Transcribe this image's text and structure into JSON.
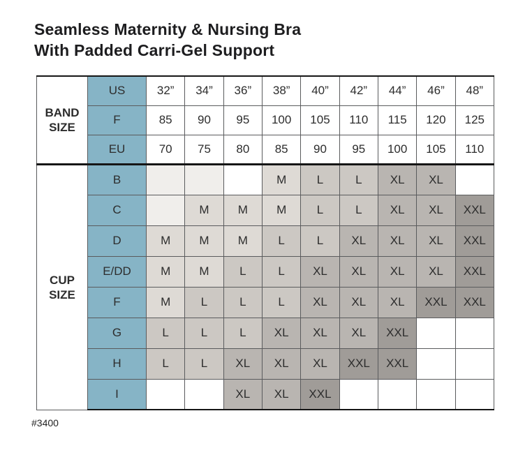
{
  "header": {
    "title_line1": "Seamless Maternity & Nursing Bra",
    "title_line2": "With Padded Carri-Gel Support"
  },
  "footer": {
    "item_number": "#3400"
  },
  "colors": {
    "teal": "#86b4c6",
    "teal_text": "#1c2a38",
    "body_text": "#2d2d2d",
    "grid_line": "#5a5b5d",
    "heavy_line": "#161616",
    "shades": {
      "w": "#ffffff",
      "e": "#f0eeeb",
      "m": "#dedad5",
      "l": "#ccc8c3",
      "xl": "#b9b5b1",
      "xxl": "#a09c98"
    }
  },
  "chart_data": {
    "type": "table",
    "title": "Seamless Maternity & Nursing Bra With Padded Carri-Gel Support",
    "band_section": {
      "label_line1": "BAND",
      "label_line2": "SIZE",
      "rows": [
        {
          "header": "US",
          "values": [
            "32”",
            "34”",
            "36”",
            "38”",
            "40”",
            "42”",
            "44”",
            "46”",
            "48”"
          ]
        },
        {
          "header": "F",
          "values": [
            "85",
            "90",
            "95",
            "100",
            "105",
            "110",
            "115",
            "120",
            "125"
          ]
        },
        {
          "header": "EU",
          "values": [
            "70",
            "75",
            "80",
            "85",
            "90",
            "95",
            "100",
            "105",
            "110"
          ]
        }
      ]
    },
    "cup_section": {
      "label_line1": "CUP",
      "label_line2": "SIZE",
      "rows": [
        {
          "header": "B",
          "cells": [
            {
              "t": "",
              "s": "e"
            },
            {
              "t": "",
              "s": "e"
            },
            {
              "t": "",
              "s": "w"
            },
            {
              "t": "M",
              "s": "m"
            },
            {
              "t": "L",
              "s": "l"
            },
            {
              "t": "L",
              "s": "l"
            },
            {
              "t": "XL",
              "s": "xl"
            },
            {
              "t": "XL",
              "s": "xl"
            },
            {
              "t": "",
              "s": "w"
            }
          ]
        },
        {
          "header": "C",
          "cells": [
            {
              "t": "",
              "s": "e"
            },
            {
              "t": "M",
              "s": "m"
            },
            {
              "t": "M",
              "s": "m"
            },
            {
              "t": "M",
              "s": "m"
            },
            {
              "t": "L",
              "s": "l"
            },
            {
              "t": "L",
              "s": "l"
            },
            {
              "t": "XL",
              "s": "xl"
            },
            {
              "t": "XL",
              "s": "xl"
            },
            {
              "t": "XXL",
              "s": "xxl"
            }
          ]
        },
        {
          "header": "D",
          "cells": [
            {
              "t": "M",
              "s": "m"
            },
            {
              "t": "M",
              "s": "m"
            },
            {
              "t": "M",
              "s": "m"
            },
            {
              "t": "L",
              "s": "l"
            },
            {
              "t": "L",
              "s": "l"
            },
            {
              "t": "XL",
              "s": "xl"
            },
            {
              "t": "XL",
              "s": "xl"
            },
            {
              "t": "XL",
              "s": "xl"
            },
            {
              "t": "XXL",
              "s": "xxl"
            }
          ]
        },
        {
          "header": "E/DD",
          "cells": [
            {
              "t": "M",
              "s": "m"
            },
            {
              "t": "M",
              "s": "m"
            },
            {
              "t": "L",
              "s": "l"
            },
            {
              "t": "L",
              "s": "l"
            },
            {
              "t": "XL",
              "s": "xl"
            },
            {
              "t": "XL",
              "s": "xl"
            },
            {
              "t": "XL",
              "s": "xl"
            },
            {
              "t": "XL",
              "s": "xl"
            },
            {
              "t": "XXL",
              "s": "xxl"
            }
          ]
        },
        {
          "header": "F",
          "cells": [
            {
              "t": "M",
              "s": "m"
            },
            {
              "t": "L",
              "s": "l"
            },
            {
              "t": "L",
              "s": "l"
            },
            {
              "t": "L",
              "s": "l"
            },
            {
              "t": "XL",
              "s": "xl"
            },
            {
              "t": "XL",
              "s": "xl"
            },
            {
              "t": "XL",
              "s": "xl"
            },
            {
              "t": "XXL",
              "s": "xxl"
            },
            {
              "t": "XXL",
              "s": "xxl"
            }
          ]
        },
        {
          "header": "G",
          "cells": [
            {
              "t": "L",
              "s": "l"
            },
            {
              "t": "L",
              "s": "l"
            },
            {
              "t": "L",
              "s": "l"
            },
            {
              "t": "XL",
              "s": "xl"
            },
            {
              "t": "XL",
              "s": "xl"
            },
            {
              "t": "XL",
              "s": "xl"
            },
            {
              "t": "XXL",
              "s": "xxl"
            },
            {
              "t": "",
              "s": "w"
            },
            {
              "t": "",
              "s": "w"
            }
          ]
        },
        {
          "header": "H",
          "cells": [
            {
              "t": "L",
              "s": "l"
            },
            {
              "t": "L",
              "s": "l"
            },
            {
              "t": "XL",
              "s": "xl"
            },
            {
              "t": "XL",
              "s": "xl"
            },
            {
              "t": "XL",
              "s": "xl"
            },
            {
              "t": "XXL",
              "s": "xxl"
            },
            {
              "t": "XXL",
              "s": "xxl"
            },
            {
              "t": "",
              "s": "w"
            },
            {
              "t": "",
              "s": "w"
            }
          ]
        },
        {
          "header": "I",
          "cells": [
            {
              "t": "",
              "s": "w"
            },
            {
              "t": "",
              "s": "w"
            },
            {
              "t": "XL",
              "s": "xl"
            },
            {
              "t": "XL",
              "s": "xl"
            },
            {
              "t": "XXL",
              "s": "xxl"
            },
            {
              "t": "",
              "s": "w"
            },
            {
              "t": "",
              "s": "w"
            },
            {
              "t": "",
              "s": "w"
            },
            {
              "t": "",
              "s": "w"
            }
          ]
        }
      ]
    }
  }
}
